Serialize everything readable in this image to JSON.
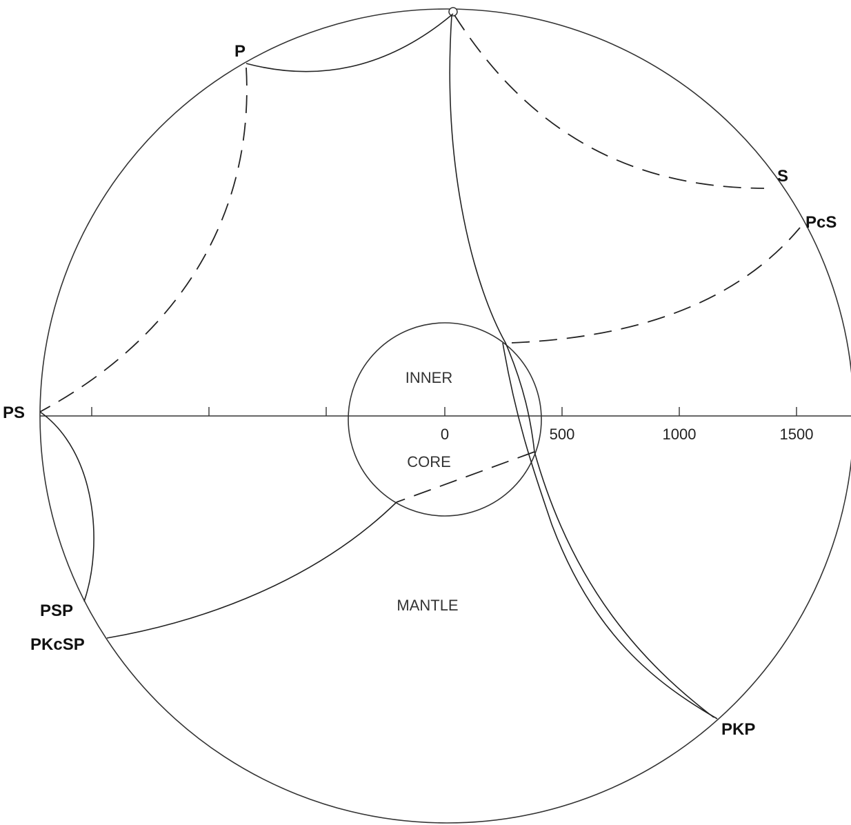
{
  "labels": {
    "p": "P",
    "s": "S",
    "pcs": "PcS",
    "ps": "PS",
    "psp": "PSP",
    "pkcsp": "PKcSP",
    "pkp": "PKP"
  },
  "regions": {
    "inner": "INNER",
    "core": "CORE",
    "mantle": "MANTLE"
  },
  "scale": {
    "ticks": [
      "0",
      "500",
      "1000",
      "1500"
    ]
  }
}
